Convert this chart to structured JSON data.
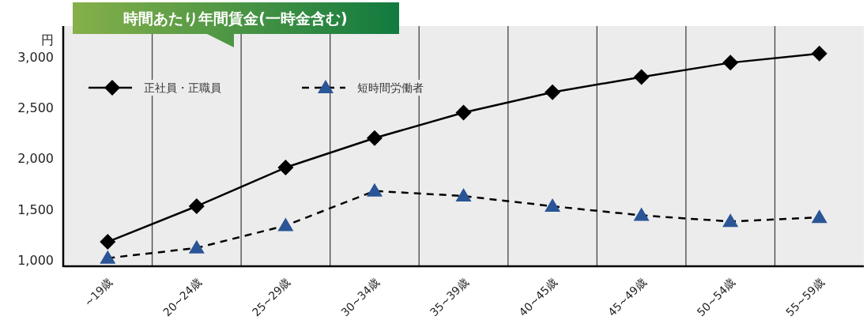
{
  "chart_data": {
    "type": "line",
    "title": "時間あたり年間賃金(一時金含む)",
    "ylabel": "円",
    "categories": [
      "~19歳",
      "20~24歳",
      "25~29歳",
      "30~34歳",
      "35~39歳",
      "40~45歳",
      "45~49歳",
      "50~54歳",
      "55~59歳"
    ],
    "series": [
      {
        "name": "正社員・正職員",
        "color": "#000000",
        "marker": "diamond",
        "line_style": "solid",
        "values": [
          1180,
          1530,
          1910,
          2200,
          2450,
          2650,
          2800,
          2940,
          3030
        ]
      },
      {
        "name": "短時間労働者",
        "color": "#2a5596",
        "marker": "triangle",
        "line_style": "dashed",
        "values": [
          1020,
          1120,
          1340,
          1680,
          1630,
          1530,
          1440,
          1380,
          1420
        ]
      }
    ],
    "ylim": [
      940,
      3300
    ],
    "yticks": [
      {
        "value": 1000,
        "label": "1,000"
      },
      {
        "value": 1500,
        "label": "1,500"
      },
      {
        "value": 2000,
        "label": "2,000"
      },
      {
        "value": 2500,
        "label": "2,500"
      },
      {
        "value": 3000,
        "label": "3,000"
      }
    ],
    "grid": "x",
    "legend": "top left"
  }
}
